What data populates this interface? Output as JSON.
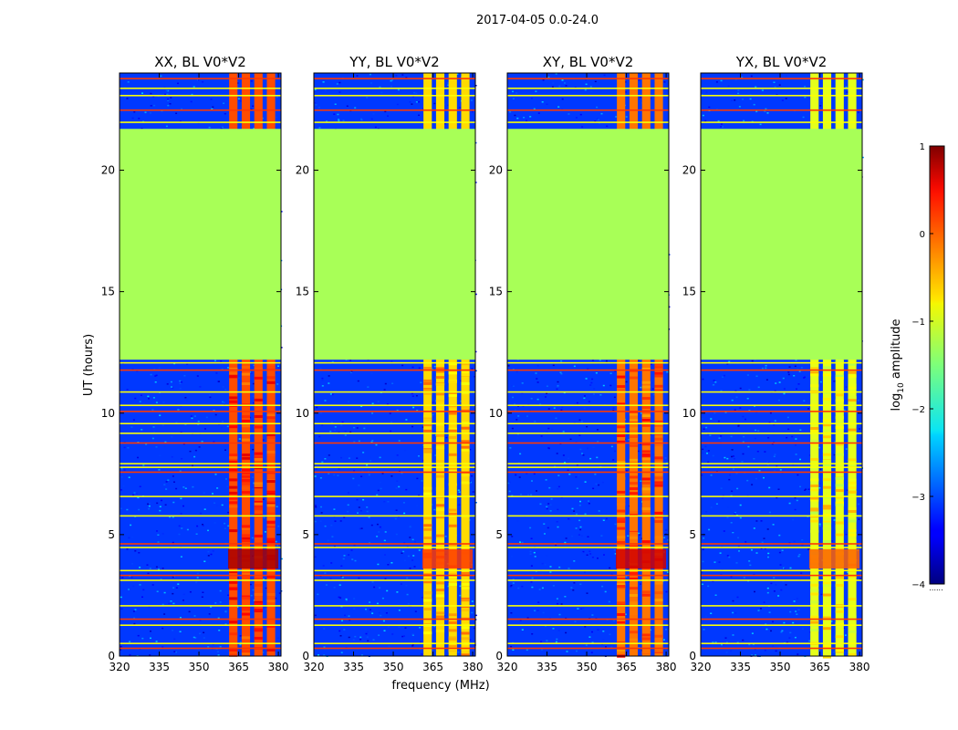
{
  "figure": {
    "suptitle": "2017-04-05 0.0-24.0",
    "xlabel": "frequency (MHz)",
    "ylabel": "UT (hours)"
  },
  "colorbar": {
    "label_prefix": "log",
    "label_sub": "10",
    "label_suffix": " amplitude",
    "range": [
      -4,
      1
    ],
    "ticks": [
      {
        "v": 1,
        "label": "1"
      },
      {
        "v": 0,
        "label": "0"
      },
      {
        "v": -1,
        "label": "−1"
      },
      {
        "v": -2,
        "label": "−2"
      },
      {
        "v": -3,
        "label": "−3"
      },
      {
        "v": -4,
        "label": "−4"
      }
    ],
    "colormap": "jet"
  },
  "chart_data": {
    "type": "heatmap",
    "xlim": [
      320,
      381
    ],
    "ylim": [
      0,
      24
    ],
    "xticks": [
      {
        "v": 320,
        "label": "320"
      },
      {
        "v": 335,
        "label": "335"
      },
      {
        "v": 350,
        "label": "350"
      },
      {
        "v": 365,
        "label": "365"
      },
      {
        "v": 380,
        "label": "380"
      }
    ],
    "yticks": [
      {
        "v": 0,
        "label": "0"
      },
      {
        "v": 5,
        "label": "5"
      },
      {
        "v": 10,
        "label": "10"
      },
      {
        "v": 15,
        "label": "15"
      },
      {
        "v": 20,
        "label": "20"
      }
    ],
    "flagged_region": {
      "t_start": 12.2,
      "t_end": 21.7,
      "log10_amplitude": -1.3
    },
    "rfi_band": {
      "f_start": 361,
      "f_end": 380
    },
    "panels": [
      {
        "title": "XX, BL V0*V2",
        "background_log10": -3.1,
        "band_log10": 0.0,
        "peak_log10": 0.8
      },
      {
        "title": "YY, BL V0*V2",
        "background_log10": -3.1,
        "band_log10": -0.7,
        "peak_log10": 0.1
      },
      {
        "title": "XY, BL V0*V2",
        "background_log10": -3.1,
        "band_log10": -0.2,
        "peak_log10": 0.6
      },
      {
        "title": "YX, BL V0*V2",
        "background_log10": -3.1,
        "band_log10": -1.0,
        "peak_log10": -0.1
      }
    ]
  }
}
